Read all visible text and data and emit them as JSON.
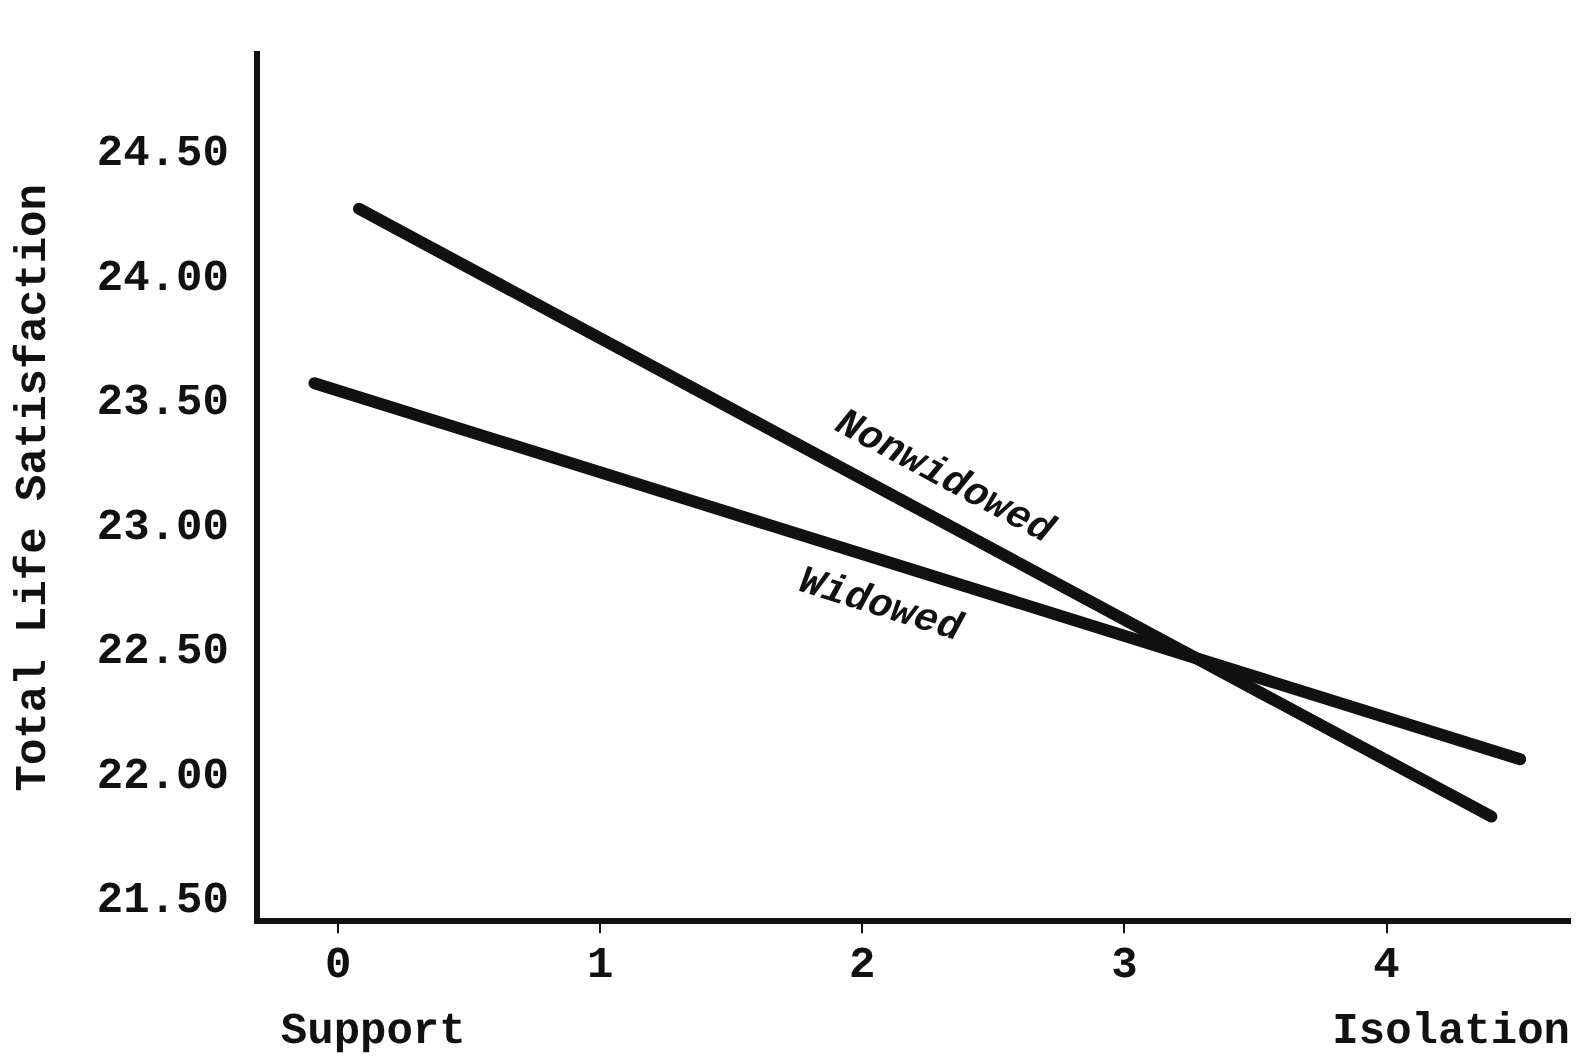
{
  "chart_data": {
    "type": "line",
    "ylabel": "Total Life Satisfaction",
    "xlim": [
      -0.31,
      4.7
    ],
    "xticks": [
      0,
      1,
      2,
      3,
      4
    ],
    "ylim": [
      21.42,
      24.9
    ],
    "yticks": [
      {
        "value": 21.5,
        "label": "21.50"
      },
      {
        "value": 22,
        "label": "22.00"
      },
      {
        "value": 22.5,
        "label": "22.50"
      },
      {
        "value": 23,
        "label": "23.00"
      },
      {
        "value": 23.5,
        "label": "23.50"
      },
      {
        "value": 24,
        "label": "24.00"
      },
      {
        "value": 24.5,
        "label": "24.50"
      }
    ],
    "series": [
      {
        "name": "Nonwidowed",
        "color": "#111111",
        "x": [
          0.08,
          4.4
        ],
        "values": [
          24.28,
          21.84
        ]
      },
      {
        "name": "Widowed",
        "color": "#111111",
        "x": [
          -0.09,
          4.51
        ],
        "values": [
          23.58,
          22.07
        ]
      }
    ],
    "annotations": [
      "Support",
      "Isolation"
    ],
    "grid": false,
    "legend": false,
    "marker": "none",
    "line_style": "solid"
  }
}
